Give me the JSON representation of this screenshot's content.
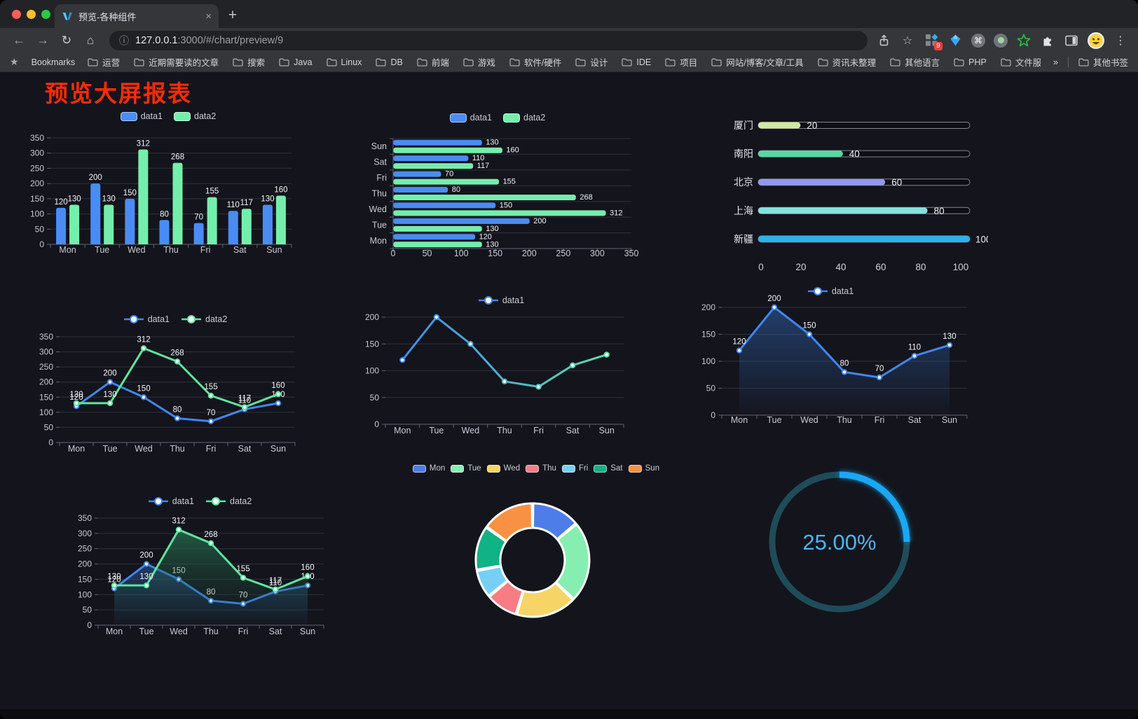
{
  "browser": {
    "traffic_lights": [
      "#ff5f57",
      "#febc2e",
      "#28c840"
    ],
    "tab_title": "预览-各种组件",
    "url_host": "127.0.0.1",
    "url_rest": ":3000/#/chart/preview/9",
    "extension_badge": "9",
    "bookmarks_label": "Bookmarks",
    "bookmarks": [
      "运营",
      "近期需要读的文章",
      "搜索",
      "Java",
      "Linux",
      "DB",
      "前端",
      "游戏",
      "软件/硬件",
      "设计",
      "IDE",
      "项目",
      "网站/博客/文章/工具",
      "资讯未整理",
      "其他语言",
      "PHP",
      "文件服务器"
    ],
    "overflow_chevron": "»",
    "other_bookmarks": "其他书签",
    "icons": {
      "close": "×",
      "new_tab": "+",
      "back": "←",
      "forward": "→",
      "reload": "↻",
      "home": "⌂",
      "info": "ⓘ",
      "cmd": "⌘",
      "kebab": "⋮",
      "bookmarks_star": "★",
      "star": "☆"
    }
  },
  "page": {
    "title": "预览大屏报表",
    "title_color": "#fd2b06",
    "background": "#14141c"
  },
  "chart_data": [
    {
      "id": "grouped-bar",
      "type": "bar",
      "categories": [
        "Mon",
        "Tue",
        "Wed",
        "Thu",
        "Fri",
        "Sat",
        "Sun"
      ],
      "series": [
        {
          "name": "data1",
          "color": "#4a8cf4",
          "border": "#a6c9f9",
          "values": [
            120,
            200,
            150,
            80,
            70,
            110,
            130
          ]
        },
        {
          "name": "data2",
          "color": "#74efab",
          "border": "#c6f9dd",
          "values": [
            130,
            130,
            312,
            268,
            155,
            117,
            160
          ]
        }
      ],
      "ylim": [
        0,
        350
      ],
      "ystep": 50,
      "value_labels": true,
      "legend_position": "top",
      "grid": true
    },
    {
      "id": "horizontal-bar",
      "type": "bar-horizontal",
      "categories": [
        "Sun",
        "Sat",
        "Fri",
        "Thu",
        "Wed",
        "Tue",
        "Mon"
      ],
      "series": [
        {
          "name": "data1",
          "color": "#4a8cf4",
          "border": "#a6c9f9",
          "values": [
            130,
            110,
            70,
            80,
            150,
            200,
            120
          ]
        },
        {
          "name": "data2",
          "color": "#74efab",
          "border": "#c6f9dd",
          "values": [
            160,
            117,
            155,
            268,
            312,
            130,
            130
          ]
        }
      ],
      "xlim": [
        0,
        350
      ],
      "xstep": 50,
      "value_labels": true,
      "legend_position": "top",
      "grid": true
    },
    {
      "id": "progress-bars",
      "type": "progress",
      "items": [
        {
          "label": "厦门",
          "value": 20,
          "color": "#cfe9a2"
        },
        {
          "label": "南阳",
          "value": 40,
          "color": "#57d8a4"
        },
        {
          "label": "北京",
          "value": 60,
          "color": "#9399e8"
        },
        {
          "label": "上海",
          "value": 80,
          "color": "#85e2dd"
        },
        {
          "label": "新疆",
          "value": 100,
          "color": "#2bb3e8"
        }
      ],
      "xlim": [
        0,
        100
      ],
      "axis_ticks": [
        0,
        20,
        40,
        60,
        80,
        100
      ],
      "track_border": "#82868e",
      "track_fill": "#0e0e15"
    },
    {
      "id": "two-line",
      "type": "line",
      "categories": [
        "Mon",
        "Tue",
        "Wed",
        "Thu",
        "Fri",
        "Sat",
        "Sun"
      ],
      "series": [
        {
          "name": "data1",
          "color": "#3f87f0",
          "values": [
            120,
            200,
            150,
            80,
            70,
            110,
            130
          ]
        },
        {
          "name": "data2",
          "color": "#5ce6a0",
          "values": [
            130,
            130,
            312,
            268,
            155,
            117,
            160
          ]
        }
      ],
      "ylim": [
        0,
        350
      ],
      "ystep": 50,
      "value_labels": true,
      "legend_position": "top",
      "grid": true
    },
    {
      "id": "gradient-line",
      "type": "line",
      "categories": [
        "Mon",
        "Tue",
        "Wed",
        "Thu",
        "Fri",
        "Sat",
        "Sun"
      ],
      "series": [
        {
          "name": "data1",
          "color": "#3f87f0",
          "gradient": [
            "#3f87f0",
            "#5ce6a0"
          ],
          "values": [
            120,
            200,
            150,
            80,
            70,
            110,
            130
          ]
        }
      ],
      "ylim": [
        0,
        200
      ],
      "ystep": 50,
      "value_labels": false,
      "legend_position": "top",
      "grid": true
    },
    {
      "id": "blue-area-line",
      "type": "line",
      "categories": [
        "Mon",
        "Tue",
        "Wed",
        "Thu",
        "Fri",
        "Sat",
        "Sun"
      ],
      "series": [
        {
          "name": "data1",
          "color": "#3f87f0",
          "area": [
            "rgba(47,98,173,0.55)",
            "rgba(47,98,173,0.02)"
          ],
          "values": [
            120,
            200,
            150,
            80,
            70,
            110,
            130
          ]
        }
      ],
      "ylim": [
        0,
        200
      ],
      "ystep": 50,
      "value_labels": true,
      "legend_position": "top",
      "grid": true
    },
    {
      "id": "two-area-line",
      "type": "line",
      "categories": [
        "Mon",
        "Tue",
        "Wed",
        "Thu",
        "Fri",
        "Sat",
        "Sun"
      ],
      "series": [
        {
          "name": "data1",
          "color": "#3f87f0",
          "area": [
            "rgba(47,98,173,0.50)",
            "rgba(47,98,173,0.02)"
          ],
          "values": [
            120,
            200,
            150,
            80,
            70,
            110,
            130
          ]
        },
        {
          "name": "data2",
          "color": "#5ce6a0",
          "area": [
            "rgba(46,138,96,0.60)",
            "rgba(20,60,45,0.05)"
          ],
          "values": [
            130,
            130,
            312,
            268,
            155,
            117,
            160
          ]
        }
      ],
      "ylim": [
        0,
        350
      ],
      "ystep": 50,
      "value_labels": true,
      "legend_position": "top",
      "grid": true
    },
    {
      "id": "donut",
      "type": "pie",
      "items": [
        {
          "label": "Mon",
          "value": 120,
          "color": "#4d7de8",
          "border": "#adc6f7"
        },
        {
          "label": "Tue",
          "value": 200,
          "color": "#87eeb2",
          "border": "#cdf9e1"
        },
        {
          "label": "Wed",
          "value": 150,
          "color": "#f6d566",
          "border": "#fbecb6"
        },
        {
          "label": "Thu",
          "value": 80,
          "color": "#f87c84",
          "border": "#fcc3c7"
        },
        {
          "label": "Fri",
          "value": 70,
          "color": "#76d0f6",
          "border": "#c0e9fb"
        },
        {
          "label": "Sat",
          "value": 110,
          "color": "#11b285",
          "border": "#8fdcc6"
        },
        {
          "label": "Sun",
          "value": 130,
          "color": "#f89143",
          "border": "#fccfa6"
        }
      ],
      "segment_border": "#ffffff",
      "legend_position": "top"
    },
    {
      "id": "gauge",
      "type": "gauge",
      "value_text": "25.00%",
      "percent": 25,
      "color": "#19a8f5",
      "track_color": "#1e4c59",
      "text_color": "#4ab6f6"
    }
  ]
}
